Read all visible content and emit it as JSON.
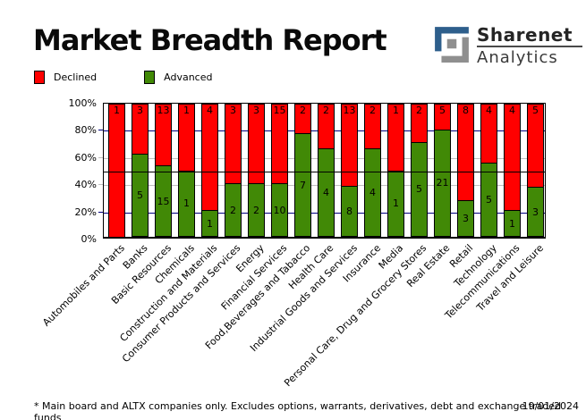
{
  "header": {
    "title": "Market Breadth Report"
  },
  "logo": {
    "name": "Sharenet",
    "division": "Analytics",
    "icon_blue": "#2E5F8C",
    "icon_gray": "#8F8F8F"
  },
  "legend": {
    "items": [
      {
        "label": "Declined",
        "color": "#FF0000"
      },
      {
        "label": "Advanced",
        "color": "#418906"
      }
    ]
  },
  "chart_data": {
    "type": "bar",
    "stacked": true,
    "unit": "percent_of_total",
    "ylim": [
      0,
      100
    ],
    "ytick_labels": [
      "100%",
      "80%",
      "60%",
      "40%",
      "20%",
      "0%"
    ],
    "grid": true,
    "legend_position": "top-left",
    "bar_border_color": "#000000",
    "categories": [
      "Automobiles and Parts",
      "Banks",
      "Basic Resources",
      "Chemicals",
      "Construction and Materials",
      "Consumer Products and Services",
      "Energy",
      "Financial Services",
      "Food,Beverages and Tabacco",
      "Health Care",
      "Industrial Goods and Services",
      "Insurance",
      "Media",
      "Personal Care, Drug and Grocery Stores",
      "Real Estate",
      "Retail",
      "Technology",
      "Telecommunications",
      "Travel and Leisure"
    ],
    "series": [
      {
        "name": "Declined",
        "color": "#FF0000",
        "values": [
          1,
          3,
          13,
          1,
          4,
          3,
          3,
          15,
          2,
          2,
          13,
          2,
          1,
          2,
          5,
          8,
          4,
          4,
          5
        ]
      },
      {
        "name": "Advanced",
        "color": "#418906",
        "values": [
          0,
          5,
          15,
          1,
          1,
          2,
          2,
          10,
          7,
          4,
          8,
          4,
          1,
          5,
          21,
          3,
          5,
          1,
          3
        ]
      }
    ],
    "gridlines": [
      {
        "percent": 80,
        "color": "#000080",
        "on_top": false
      },
      {
        "percent": 60,
        "color": "#C0C0C0",
        "on_top": false
      },
      {
        "percent": 50,
        "color": "#000000",
        "on_top": true
      },
      {
        "percent": 40,
        "color": "#C0C0C0",
        "on_top": false
      },
      {
        "percent": 20,
        "color": "#000080",
        "on_top": false
      }
    ]
  },
  "footer": {
    "note": "* Main board and ALTX companies only. Excludes options, warrants, derivatives, debt and exchange traded funds",
    "date": "19/01/2024"
  }
}
